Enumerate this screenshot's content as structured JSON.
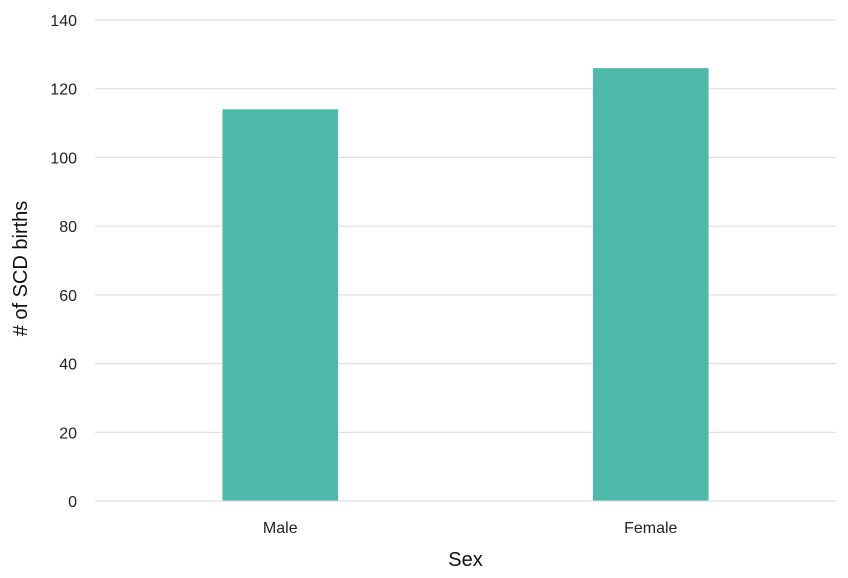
{
  "chart_data": {
    "type": "bar",
    "categories": [
      "Male",
      "Female"
    ],
    "values": [
      114,
      126
    ],
    "xlabel": "Sex",
    "ylabel": "# of SCD births",
    "ylim": [
      0,
      140
    ],
    "yticks": [
      0,
      20,
      40,
      60,
      80,
      100,
      120,
      140
    ],
    "grid": true,
    "legend": "none",
    "bar_color": "#4fb9a9"
  }
}
